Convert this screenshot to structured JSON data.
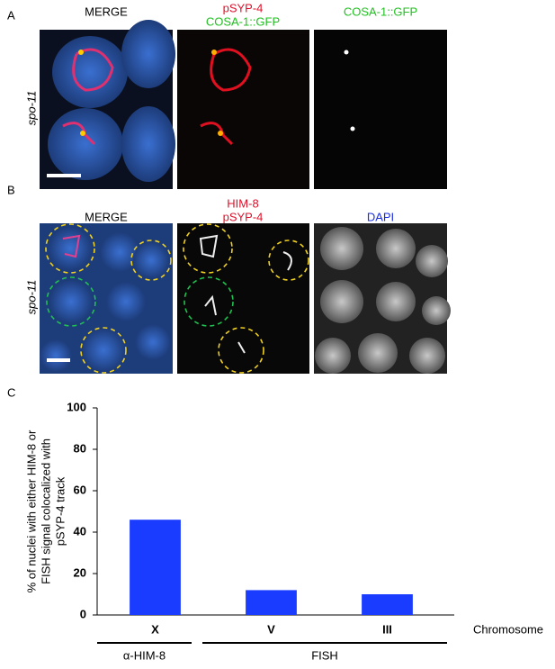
{
  "panel_a": {
    "label": "A",
    "strain": "spo-11",
    "titles": [
      "MERGE",
      "pSYP-4",
      "COSA-1::GFP",
      "COSA-1::GFP"
    ]
  },
  "panel_b": {
    "label": "B",
    "strain": "spo-11",
    "titles": [
      "MERGE",
      "HIM-8",
      "pSYP-4",
      "DAPI"
    ]
  },
  "chart_data": {
    "type": "bar",
    "panel_label": "C",
    "ylabel": [
      "% of nuclei with either HIM-8 or",
      "FISH signal colocalized with",
      "pSYP-4 track"
    ],
    "xlabel": "Chromosome",
    "categories": [
      "X",
      "V",
      "III"
    ],
    "values": [
      46,
      12,
      10
    ],
    "color": "#1a3cff",
    "groups": [
      {
        "label": "α-HIM-8",
        "span": [
          0,
          0
        ]
      },
      {
        "label": "FISH",
        "span": [
          1,
          2
        ]
      }
    ],
    "ylim": [
      0,
      100
    ],
    "yticks": [
      0,
      20,
      40,
      60,
      80,
      100
    ],
    "grid": false
  }
}
